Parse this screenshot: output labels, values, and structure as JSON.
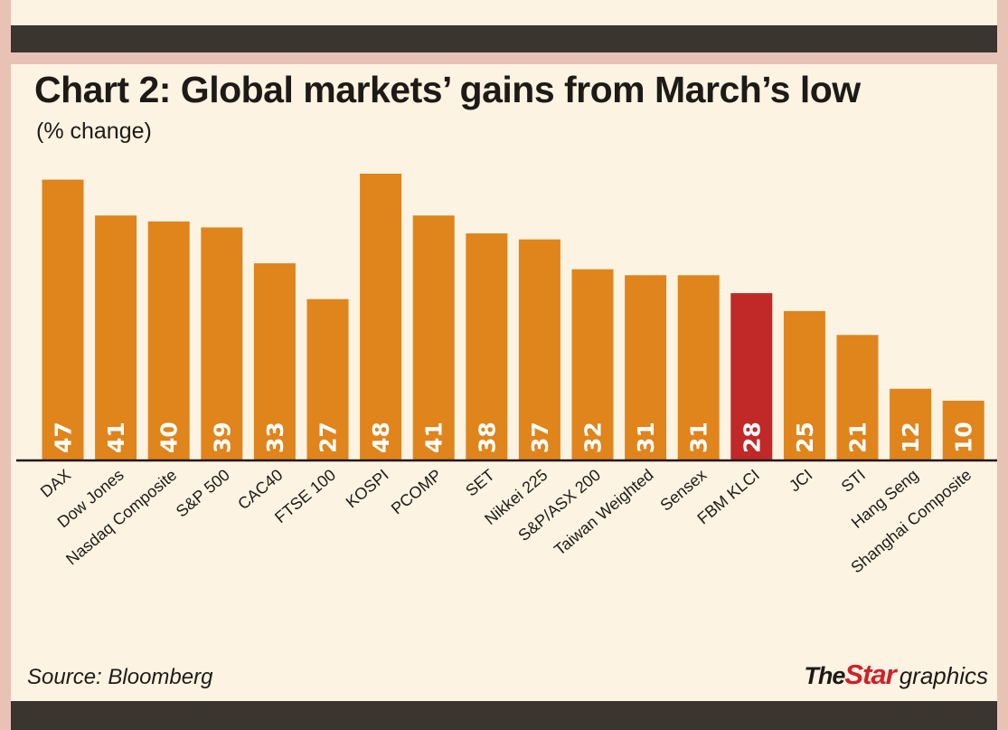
{
  "header": {
    "title": "Chart 2: Global markets’ gains from March’s low",
    "subtitle": "(% change)"
  },
  "footer": {
    "source": "Source: Bloomberg",
    "brand_the": "The",
    "brand_star": "Star",
    "brand_graphics": "graphics"
  },
  "colors": {
    "bar": "#e0841c",
    "highlight": "#c12828",
    "value_text": "#ffffff",
    "axis": "#1e1a16"
  },
  "chart_data": {
    "type": "bar",
    "title": "Chart 2: Global markets’ gains from March’s low",
    "ylabel": "(% change)",
    "xlabel": "",
    "ylim": [
      0,
      48
    ],
    "grid": false,
    "highlight_category": "FBM KLCI",
    "categories": [
      "DAX",
      "Dow Jones",
      "Nasdaq Composite",
      "S&P 500",
      "CAC40",
      "FTSE 100",
      "KOSPI",
      "PCOMP",
      "SET",
      "Nikkei 225",
      "S&P/ASX 200",
      "Taiwan Weighted",
      "Sensex",
      "FBM KLCI",
      "JCI",
      "STI",
      "Hang Seng",
      "Shanghai Composite"
    ],
    "values": [
      47,
      41,
      40,
      39,
      33,
      27,
      48,
      41,
      38,
      37,
      32,
      31,
      31,
      28,
      25,
      21,
      12,
      10
    ]
  }
}
